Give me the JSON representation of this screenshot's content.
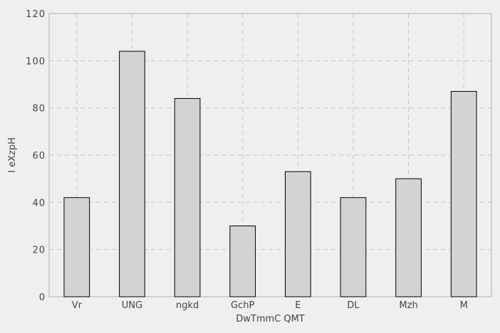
{
  "chart_data": {
    "type": "bar",
    "categories": [
      "Vr",
      "UNG",
      "ngkd",
      "GchP",
      "E",
      "DL",
      "Mzh",
      "M"
    ],
    "values": [
      42,
      104,
      84,
      30,
      53,
      42,
      50,
      87
    ],
    "xlabel": "DwTmmC QMT",
    "ylabel": "I eXzpH",
    "ylim": [
      0,
      120
    ],
    "yticks": [
      0,
      20,
      40,
      60,
      80,
      100,
      120
    ],
    "grid": true,
    "colors": {
      "bar_fill": "#d3d3d3",
      "bar_stroke": "#000000",
      "grid": "#c4c4c4",
      "background": "#efefef",
      "axes": "#b0b0b0"
    }
  }
}
